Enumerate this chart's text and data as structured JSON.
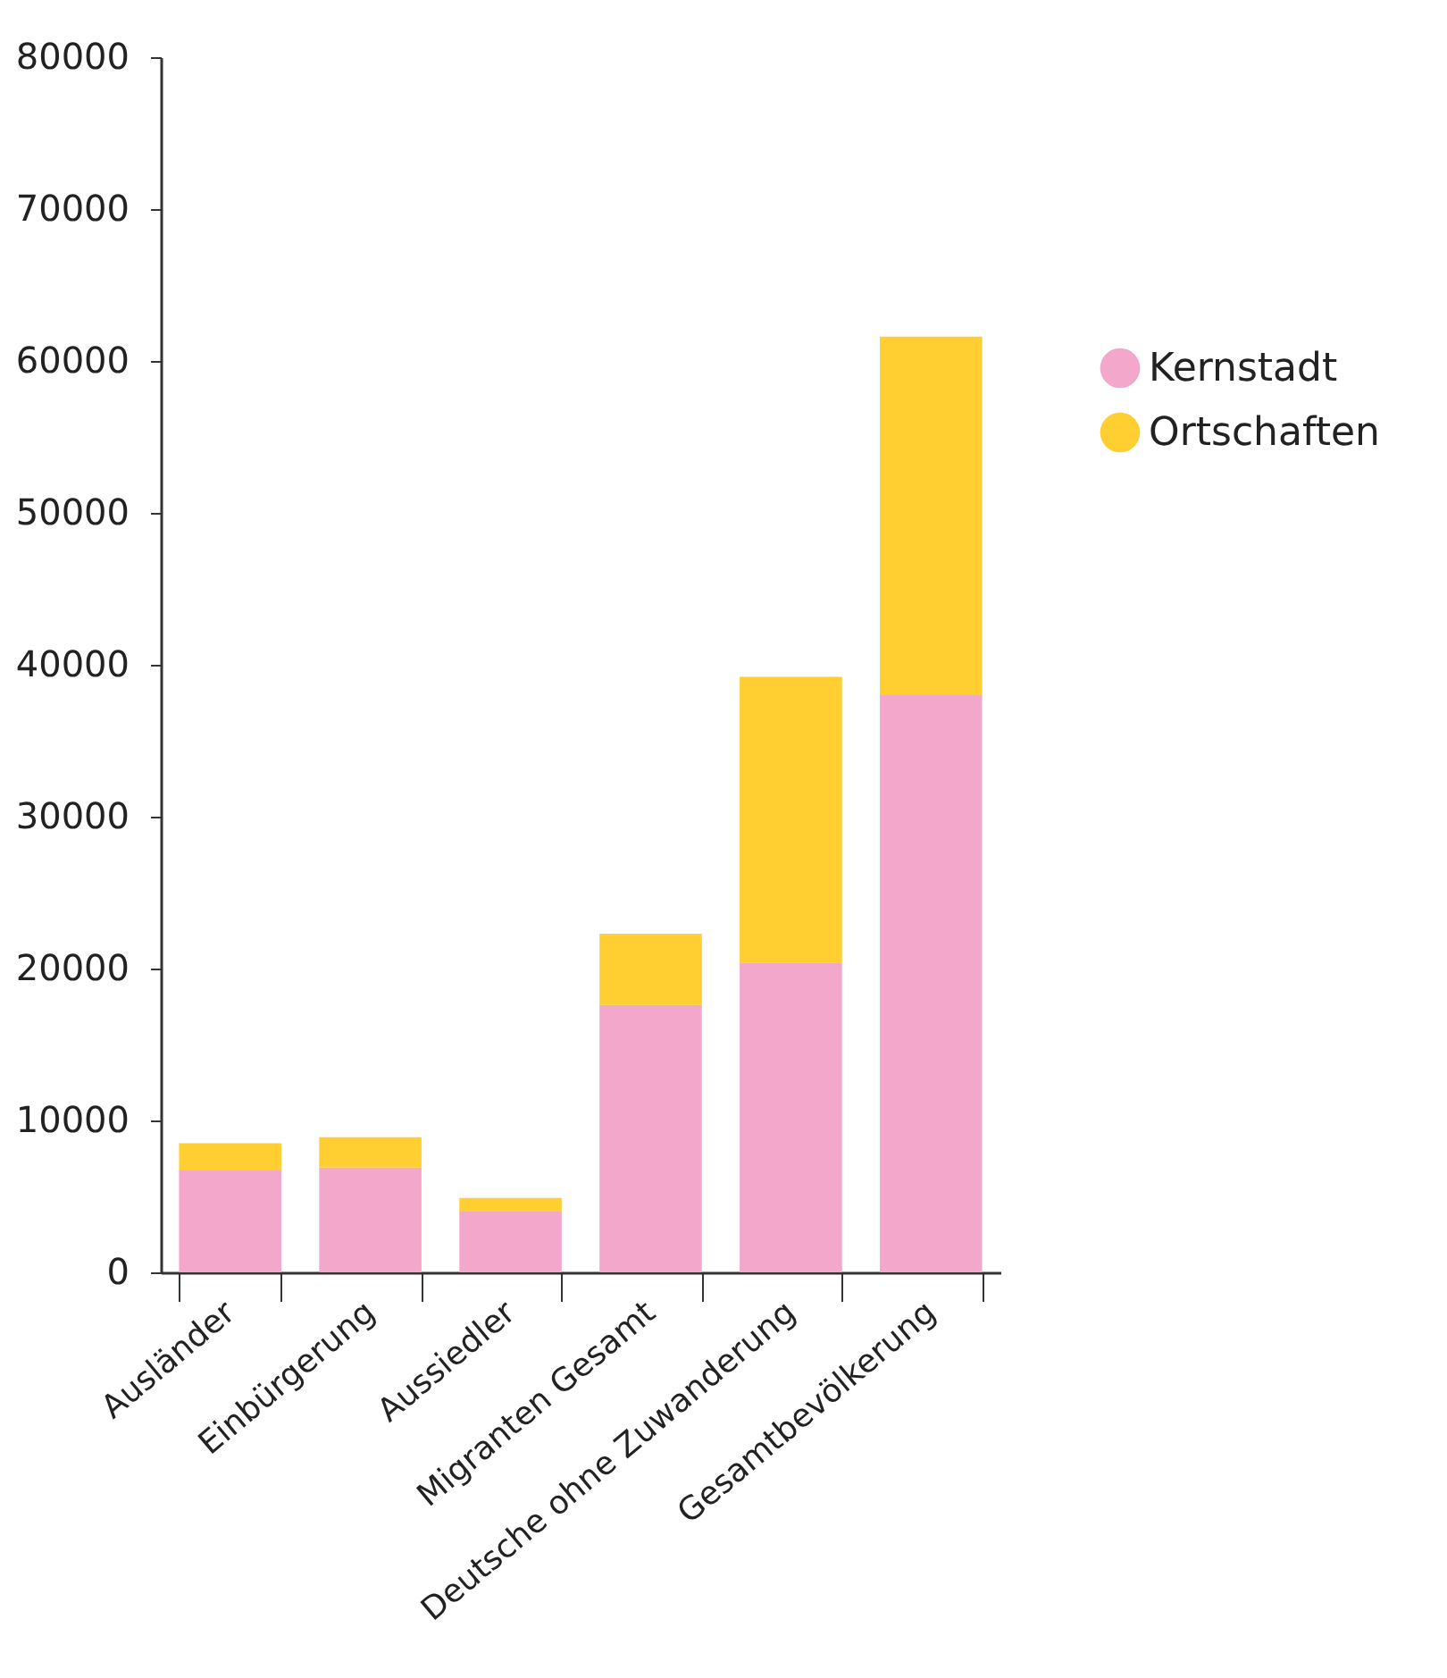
{
  "chart_data": {
    "type": "bar",
    "stacked": true,
    "categories": [
      "Ausländer",
      "Einbürgerung",
      "Aussiedler",
      "Migranten Gesamt",
      "Deutsche ohne Zuwanderung",
      "Gesamtbevölkerung"
    ],
    "series": [
      {
        "name": "Kernstadt",
        "color": "#f3a8cb",
        "values": [
          6700,
          6900,
          4000,
          17600,
          20400,
          38000
        ]
      },
      {
        "name": "Ortschaften",
        "color": "#ffce30",
        "values": [
          1800,
          2000,
          900,
          4700,
          18800,
          23600
        ]
      }
    ],
    "ylim": [
      0,
      80000
    ],
    "yticks": [
      0,
      10000,
      20000,
      30000,
      40000,
      50000,
      60000,
      70000,
      80000
    ],
    "grid": false,
    "legend": "right"
  }
}
